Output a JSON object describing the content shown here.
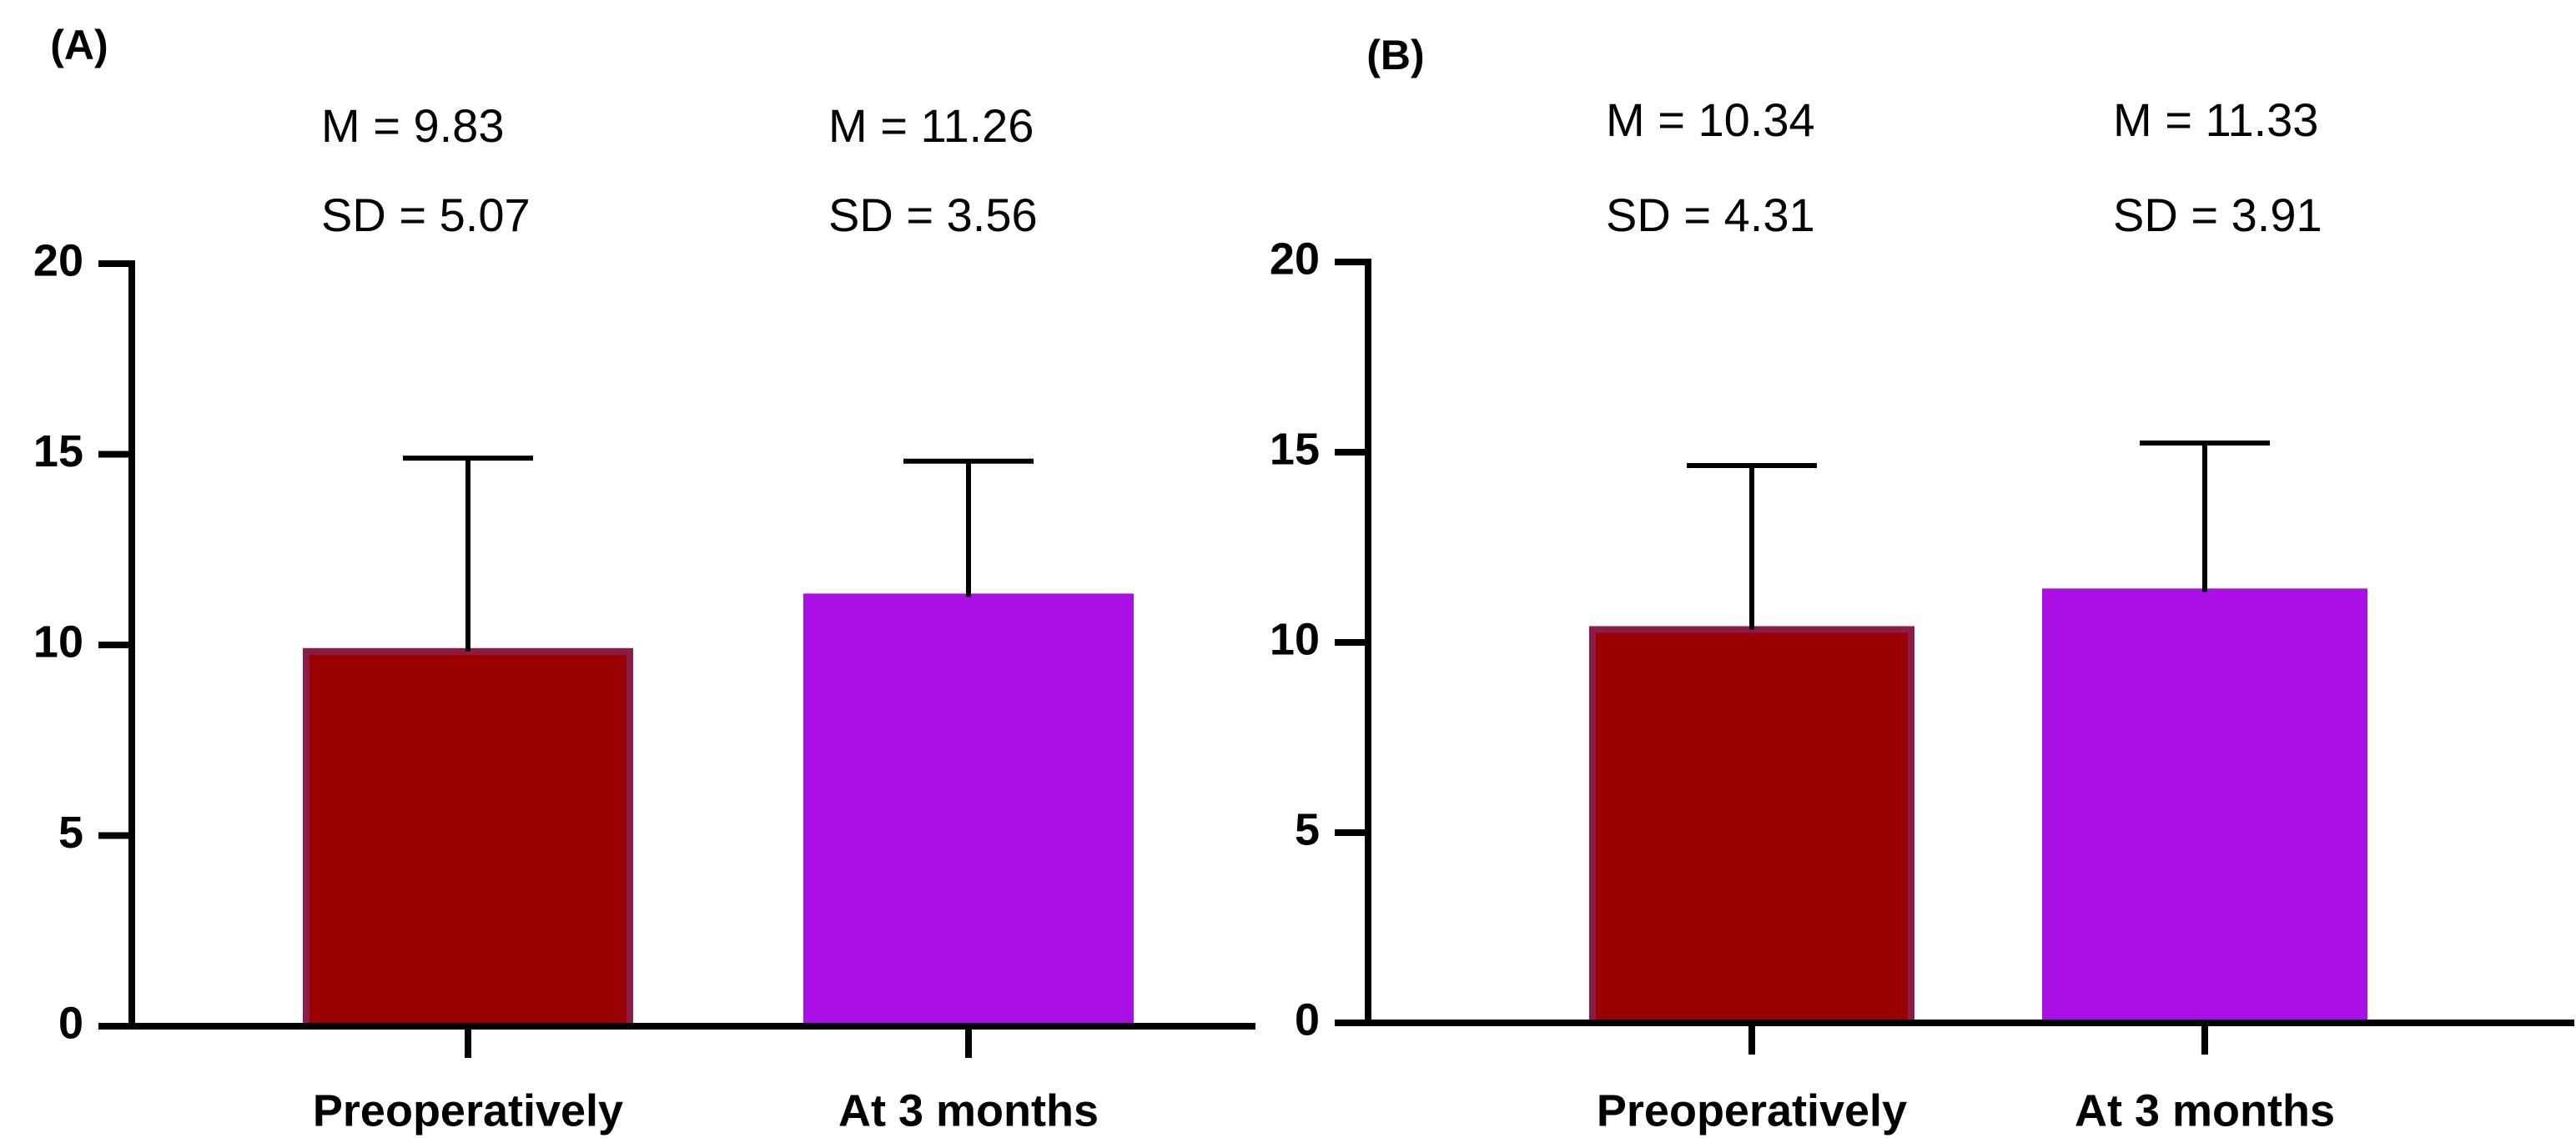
{
  "chart_data": [
    {
      "type": "bar",
      "panel_label": "(A)",
      "categories": [
        "Preoperatively",
        "At 3 months"
      ],
      "values": [
        9.83,
        11.26
      ],
      "errors": [
        5.07,
        3.56
      ],
      "bar_colors": [
        "#9a0000",
        "#aa0fe6"
      ],
      "bar_edge_colors": [
        "#8a1c48",
        "#aa0fe6"
      ],
      "annotations": [
        {
          "mean": "M   = 9.83",
          "sd": "SD = 5.07"
        },
        {
          "mean": "M   = 11.26",
          "sd": "SD = 3.56"
        }
      ],
      "ylim": [
        0,
        20
      ],
      "yticks": [
        0,
        5,
        10,
        15,
        20
      ],
      "ytick_labels": [
        "0",
        "5",
        "10",
        "15",
        "20"
      ],
      "xlabel": "",
      "ylabel": ""
    },
    {
      "type": "bar",
      "panel_label": "(B)",
      "categories": [
        "Preoperatively",
        "At 3 months"
      ],
      "values": [
        10.34,
        11.33
      ],
      "errors": [
        4.31,
        3.91
      ],
      "bar_colors": [
        "#9a0000",
        "#aa0fe6"
      ],
      "bar_edge_colors": [
        "#8a1c48",
        "#aa0fe6"
      ],
      "annotations": [
        {
          "mean": "M   = 10.34",
          "sd": "SD = 4.31"
        },
        {
          "mean": "M   = 11.33",
          "sd": "SD = 3.91"
        }
      ],
      "ylim": [
        0,
        20
      ],
      "yticks": [
        0,
        5,
        10,
        15,
        20
      ],
      "ytick_labels": [
        "0",
        "5",
        "10",
        "15",
        "20"
      ],
      "xlabel": "",
      "ylabel": ""
    }
  ]
}
